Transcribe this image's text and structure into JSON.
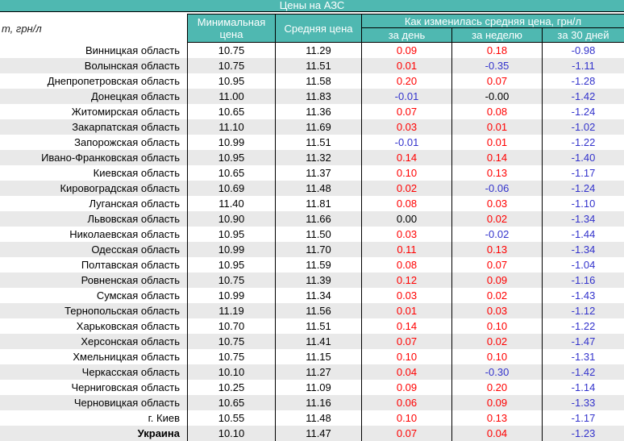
{
  "colors": {
    "teal": "#4fb8b1",
    "header_text": "#ffffff",
    "border": "#000000",
    "row_alt": "#e9e9e9",
    "positive": "#ff0000",
    "negative": "#3333cc"
  },
  "chart_data": {
    "type": "table",
    "title": "Цены на АЗС",
    "unit_label_partial": "т, грн/л",
    "column_group": "Как изменилась средняя цена, грн/л",
    "columns": [
      {
        "key": "region",
        "label": ""
      },
      {
        "key": "min",
        "label": "Минимальная цена"
      },
      {
        "key": "avg",
        "label": "Средняя цена"
      },
      {
        "key": "day",
        "label": "за день"
      },
      {
        "key": "week",
        "label": "за неделю"
      },
      {
        "key": "days30",
        "label": "за 30 дней"
      }
    ],
    "value_color_rule": {
      "positive": "red",
      "negative": "blue",
      "zero": "black"
    },
    "rows": [
      {
        "region": "Винницкая область",
        "min": "10.75",
        "avg": "11.29",
        "day": "0.09",
        "week": "0.18",
        "days30": "-0.98"
      },
      {
        "region": "Волынская область",
        "min": "10.75",
        "avg": "11.51",
        "day": "0.01",
        "week": "-0.35",
        "days30": "-1.11"
      },
      {
        "region": "Днепропетровская область",
        "min": "10.95",
        "avg": "11.58",
        "day": "0.20",
        "week": "0.07",
        "days30": "-1.28"
      },
      {
        "region": "Донецкая область",
        "min": "11.00",
        "avg": "11.83",
        "day": "-0.01",
        "week": "-0.00",
        "days30": "-1.42"
      },
      {
        "region": "Житомирская область",
        "min": "10.65",
        "avg": "11.36",
        "day": "0.07",
        "week": "0.08",
        "days30": "-1.24"
      },
      {
        "region": "Закарпатская область",
        "min": "11.10",
        "avg": "11.69",
        "day": "0.03",
        "week": "0.01",
        "days30": "-1.02"
      },
      {
        "region": "Запорожская область",
        "min": "10.99",
        "avg": "11.51",
        "day": "-0.01",
        "week": "0.01",
        "days30": "-1.22"
      },
      {
        "region": "Ивано-Франковская область",
        "min": "10.95",
        "avg": "11.32",
        "day": "0.14",
        "week": "0.14",
        "days30": "-1.40"
      },
      {
        "region": "Киевская область",
        "min": "10.65",
        "avg": "11.37",
        "day": "0.10",
        "week": "0.13",
        "days30": "-1.17"
      },
      {
        "region": "Кировоградская область",
        "min": "10.69",
        "avg": "11.48",
        "day": "0.02",
        "week": "-0.06",
        "days30": "-1.24"
      },
      {
        "region": "Луганская область",
        "min": "11.40",
        "avg": "11.81",
        "day": "0.08",
        "week": "0.03",
        "days30": "-1.10"
      },
      {
        "region": "Львовская область",
        "min": "10.90",
        "avg": "11.66",
        "day": "0.00",
        "week": "0.02",
        "days30": "-1.34"
      },
      {
        "region": "Николаевская область",
        "min": "10.95",
        "avg": "11.50",
        "day": "0.03",
        "week": "-0.02",
        "days30": "-1.44"
      },
      {
        "region": "Одесская область",
        "min": "10.99",
        "avg": "11.70",
        "day": "0.11",
        "week": "0.13",
        "days30": "-1.34"
      },
      {
        "region": "Полтавская область",
        "min": "10.95",
        "avg": "11.59",
        "day": "0.08",
        "week": "0.07",
        "days30": "-1.04"
      },
      {
        "region": "Ровненская область",
        "min": "10.75",
        "avg": "11.39",
        "day": "0.12",
        "week": "0.09",
        "days30": "-1.16"
      },
      {
        "region": "Сумская область",
        "min": "10.99",
        "avg": "11.34",
        "day": "0.03",
        "week": "0.02",
        "days30": "-1.43"
      },
      {
        "region": "Тернопольская область",
        "min": "11.19",
        "avg": "11.56",
        "day": "0.01",
        "week": "0.03",
        "days30": "-1.12"
      },
      {
        "region": "Харьковская область",
        "min": "10.70",
        "avg": "11.51",
        "day": "0.14",
        "week": "0.10",
        "days30": "-1.22"
      },
      {
        "region": "Херсонская область",
        "min": "10.75",
        "avg": "11.41",
        "day": "0.07",
        "week": "0.02",
        "days30": "-1.47"
      },
      {
        "region": "Хмельницкая область",
        "min": "10.75",
        "avg": "11.15",
        "day": "0.10",
        "week": "0.10",
        "days30": "-1.31"
      },
      {
        "region": "Черкасская область",
        "min": "10.10",
        "avg": "11.27",
        "day": "0.04",
        "week": "-0.30",
        "days30": "-1.42"
      },
      {
        "region": "Черниговская область",
        "min": "10.25",
        "avg": "11.09",
        "day": "0.09",
        "week": "0.20",
        "days30": "-1.14"
      },
      {
        "region": "Черновицкая область",
        "min": "10.65",
        "avg": "11.16",
        "day": "0.06",
        "week": "0.09",
        "days30": "-1.33"
      },
      {
        "region": "г. Киев",
        "min": "10.55",
        "avg": "11.48",
        "day": "0.10",
        "week": "0.13",
        "days30": "-1.17"
      },
      {
        "region": "Украина",
        "min": "10.10",
        "avg": "11.47",
        "day": "0.07",
        "week": "0.04",
        "days30": "-1.23",
        "bold": true
      }
    ]
  }
}
